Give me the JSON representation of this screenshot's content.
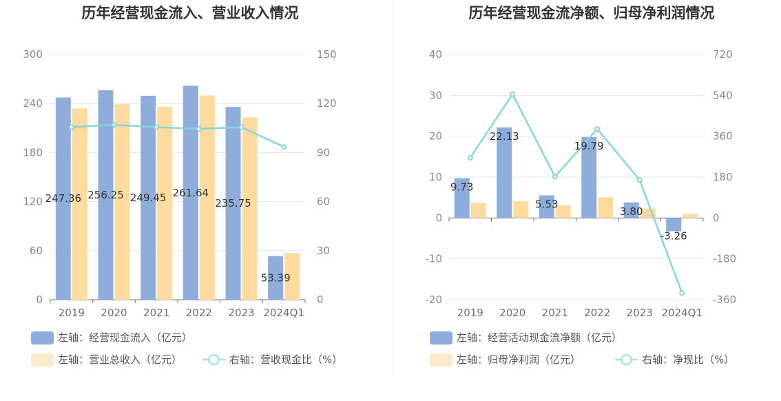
{
  "chart_data": [
    {
      "type": "bar",
      "title": "历年经营现金流入、营业收入情况",
      "categories": [
        "2019",
        "2020",
        "2021",
        "2022",
        "2023",
        "2024Q1"
      ],
      "left_axis": {
        "ticks": [
          "0",
          "60",
          "120",
          "180",
          "240",
          "300"
        ],
        "ylim": [
          0,
          300
        ]
      },
      "right_axis": {
        "ticks": [
          "0",
          "30",
          "60",
          "90",
          "120",
          "150"
        ],
        "ylim": [
          0,
          150
        ]
      },
      "series": [
        {
          "name": "左轴：经营现金流入（亿元）",
          "kind": "bar",
          "axis": "left",
          "color": "#8eaddb",
          "values": [
            247.36,
            256.25,
            249.45,
            261.64,
            235.75,
            53.39
          ],
          "labels": [
            "247.36",
            "256.25",
            "249.45",
            "261.64",
            "235.75",
            "53.39"
          ]
        },
        {
          "name": "左轴：营业总收入（亿元）",
          "kind": "bar",
          "axis": "left",
          "color": "#ffdba0",
          "values": [
            234,
            239,
            236,
            250,
            223,
            57
          ]
        },
        {
          "name": "右轴：营收现金比（%）",
          "kind": "line",
          "axis": "right",
          "color": "#88d4d8",
          "values": [
            105.5,
            107,
            105.5,
            104.5,
            105.5,
            93.5
          ]
        }
      ],
      "legend_rows": [
        [
          "左轴：经营现金流入（亿元）"
        ],
        [
          "左轴：营业总收入（亿元）",
          "右轴：营收现金比（%）"
        ]
      ]
    },
    {
      "type": "bar",
      "title": "历年经营现金流净额、归母净利润情况",
      "categories": [
        "2019",
        "2020",
        "2021",
        "2022",
        "2023",
        "2024Q1"
      ],
      "left_axis": {
        "ticks": [
          "-20",
          "-10",
          "0",
          "10",
          "20",
          "30",
          "40"
        ],
        "ylim": [
          -20,
          40
        ]
      },
      "right_axis": {
        "ticks": [
          "-360",
          "-180",
          "0",
          "180",
          "360",
          "540",
          "720"
        ],
        "ylim": [
          -360,
          720
        ]
      },
      "series": [
        {
          "name": "左轴：经营活动现金流净额（亿元）",
          "kind": "bar",
          "axis": "left",
          "color": "#8eaddb",
          "values": [
            9.73,
            22.13,
            5.53,
            19.79,
            3.8,
            -3.26
          ],
          "labels": [
            "9.73",
            "22.13",
            "5.53",
            "19.79",
            "3.80",
            "-3.26"
          ]
        },
        {
          "name": "左轴：归母净利润（亿元）",
          "kind": "bar",
          "axis": "left",
          "color": "#ffdba0",
          "values": [
            3.7,
            4.1,
            3.1,
            5.1,
            2.3,
            1.0
          ]
        },
        {
          "name": "右轴：净现比（%）",
          "kind": "line",
          "axis": "right",
          "color": "#88d4d8",
          "values": [
            265,
            545,
            182,
            392,
            167,
            -330
          ]
        }
      ],
      "legend_rows": [
        [
          "左轴：经营活动现金流净额（亿元）"
        ],
        [
          "左轴：归母净利润（亿元）",
          "右轴：净现比（%）"
        ]
      ]
    }
  ]
}
